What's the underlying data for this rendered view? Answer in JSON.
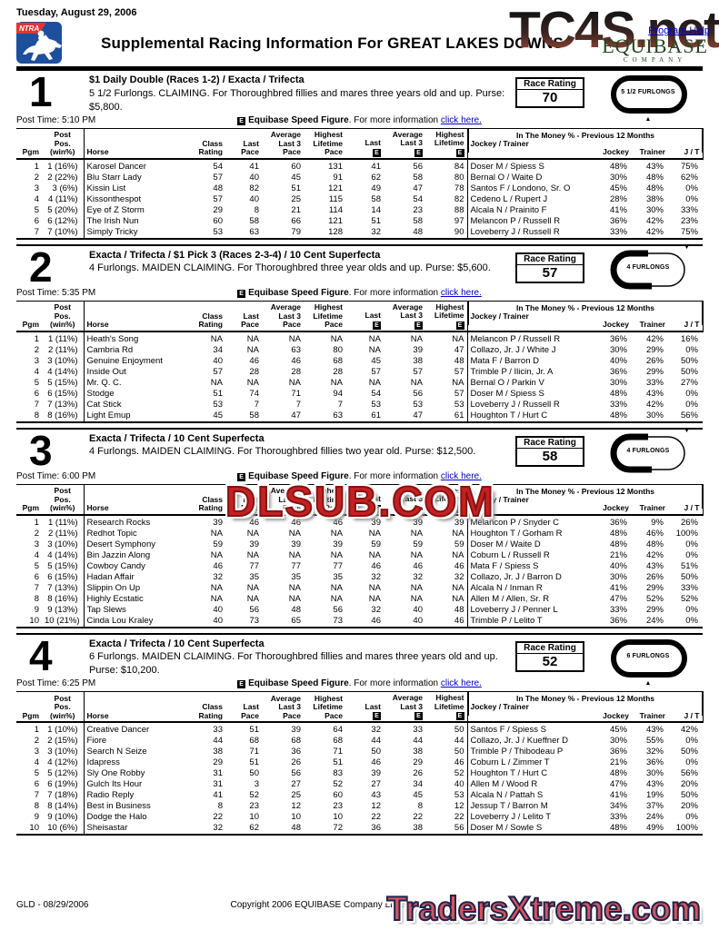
{
  "page": {
    "date": "Tuesday, August 29, 2006",
    "title": "Supplemental Racing Information For GREAT LAKES DOWNS",
    "program_help": "Program Help",
    "ntra_label": "NTRA",
    "equibase_name": "EQUIBASE",
    "equibase_sub": "COMPANY",
    "watermark_top": "TC4S.net",
    "watermark_bottom": "TradersXtreme.com",
    "footer_left": "GLD - 08/29/2006",
    "footer_center": "Copyright 2006 EQUIBASE Company LLC. All Rights Reserved.",
    "colors": {
      "link": "#0000cc",
      "ntra_blue": "#1d4f9e",
      "ntra_red": "#e3342f",
      "equibase_green": "#23481f",
      "watermark_red": "#c32222"
    }
  },
  "race_rating_label": "Race Rating",
  "speed_note": {
    "e_badge": "E",
    "bold": "Equibase Speed Figure",
    "rest": ". For more information ",
    "link": "click here."
  },
  "table_header": {
    "pgm": "Pgm",
    "pos": "Post\nPos. (win%)",
    "horse": "Horse",
    "class_rating": "Class\nRating",
    "last_pace": "Last\nPace",
    "avg3_pace": "Average\nLast 3\nPace",
    "high_pace": "Highest\nLifetime\nPace",
    "last_e": "Last",
    "avg3_e": "Average\nLast 3",
    "high_e": "Highest\nLifetime",
    "e_badge": "E",
    "jockey_trainer": "Jockey / Trainer",
    "in_the_money": "In The Money % - Previous 12 Months",
    "jockey": "Jockey",
    "trainer": "Trainer",
    "jt": "J / T"
  },
  "races": [
    {
      "num": "1",
      "wagers": "$1 Daily Double (Races 1-2) / Exacta / Trifecta",
      "conditions": "5 1/2 Furlongs. CLAIMING. For Thoroughbred fillies and mares three years old and up. Purse: $5,800.",
      "post_time": "Post Time: 5:10 PM",
      "rating": "70",
      "distance_label": "5 1/2 FURLONGS",
      "track_style": "full",
      "watermark": "",
      "rows": [
        [
          "1",
          "1 (16%)",
          "Karosel Dancer",
          "54",
          "41",
          "60",
          "131",
          "41",
          "56",
          "84",
          "Doser M / Spiess S",
          "48%",
          "43%",
          "75%"
        ],
        [
          "2",
          "2 (22%)",
          "Blu Starr Lady",
          "57",
          "40",
          "45",
          "91",
          "62",
          "58",
          "80",
          "Bernal O / Waite D",
          "30%",
          "48%",
          "62%"
        ],
        [
          "3",
          "3 (6%)",
          "Kissin List",
          "48",
          "82",
          "51",
          "121",
          "49",
          "47",
          "78",
          "Santos F / Londono, Sr. O",
          "45%",
          "48%",
          "0%"
        ],
        [
          "4",
          "4 (11%)",
          "Kissonthespot",
          "57",
          "40",
          "25",
          "115",
          "58",
          "54",
          "82",
          "Cedeno L / Rupert J",
          "28%",
          "38%",
          "0%"
        ],
        [
          "5",
          "5 (20%)",
          "Eye of Z Storm",
          "29",
          "8",
          "21",
          "114",
          "14",
          "23",
          "88",
          "Alcala N / Prainito F",
          "41%",
          "30%",
          "33%"
        ],
        [
          "6",
          "6 (12%)",
          "The Irish Nun",
          "60",
          "58",
          "66",
          "121",
          "51",
          "58",
          "97",
          "Melancon P / Russell R",
          "36%",
          "42%",
          "23%"
        ],
        [
          "7",
          "7 (10%)",
          "Simply Tricky",
          "53",
          "63",
          "79",
          "128",
          "32",
          "48",
          "90",
          "Loveberry J / Russell R",
          "33%",
          "42%",
          "75%"
        ]
      ]
    },
    {
      "num": "2",
      "wagers": "Exacta / Trifecta / $1 Pick 3 (Races 2-3-4) / 10 Cent Superfecta",
      "conditions": "4 Furlongs. MAIDEN CLAIMING. For Thoroughbred three year olds and up. Purse: $5,600.",
      "post_time": "Post Time: 5:35 PM",
      "rating": "57",
      "distance_label": "4 FURLONGS",
      "track_style": "left",
      "watermark": "",
      "rows": [
        [
          "1",
          "1 (11%)",
          "Heath's Song",
          "NA",
          "NA",
          "NA",
          "NA",
          "NA",
          "NA",
          "NA",
          "Melancon P / Russell R",
          "36%",
          "42%",
          "16%"
        ],
        [
          "2",
          "2 (11%)",
          "Cambria Rd",
          "34",
          "NA",
          "63",
          "80",
          "NA",
          "39",
          "47",
          "Collazo, Jr. J / White J",
          "30%",
          "29%",
          "0%"
        ],
        [
          "3",
          "3 (10%)",
          "Genuine Enjoyment",
          "40",
          "46",
          "46",
          "68",
          "45",
          "38",
          "48",
          "Mata F / Barron D",
          "40%",
          "26%",
          "50%"
        ],
        [
          "4",
          "4 (14%)",
          "Inside Out",
          "57",
          "28",
          "28",
          "28",
          "57",
          "57",
          "57",
          "Trimble P / Ilicin, Jr. A",
          "36%",
          "29%",
          "50%"
        ],
        [
          "5",
          "5 (15%)",
          "Mr. Q. C.",
          "NA",
          "NA",
          "NA",
          "NA",
          "NA",
          "NA",
          "NA",
          "Bernal O / Parkin V",
          "30%",
          "33%",
          "27%"
        ],
        [
          "6",
          "6 (15%)",
          "Stodge",
          "51",
          "74",
          "71",
          "94",
          "54",
          "56",
          "57",
          "Doser M / Spiess S",
          "48%",
          "43%",
          "0%"
        ],
        [
          "7",
          "7 (13%)",
          "Cat Stick",
          "53",
          "7",
          "7",
          "7",
          "53",
          "53",
          "53",
          "Loveberry J / Russell R",
          "33%",
          "42%",
          "0%"
        ],
        [
          "8",
          "8 (16%)",
          "Light Emup",
          "45",
          "58",
          "47",
          "63",
          "61",
          "47",
          "61",
          "Houghton T / Hurt C",
          "48%",
          "30%",
          "56%"
        ]
      ]
    },
    {
      "num": "3",
      "wagers": "Exacta / Trifecta / 10 Cent Superfecta",
      "conditions": "4 Furlongs. MAIDEN CLAIMING. For Thoroughbred fillies two year old. Purse: $12,500.",
      "post_time": "Post Time: 6:00 PM",
      "rating": "58",
      "distance_label": "4 FURLONGS",
      "track_style": "left",
      "watermark": "DLSUB.COM",
      "rows": [
        [
          "1",
          "1 (11%)",
          "Research Rocks",
          "39",
          "46",
          "46",
          "46",
          "39",
          "39",
          "39",
          "Melancon P / Snyder C",
          "36%",
          "9%",
          "26%"
        ],
        [
          "2",
          "2 (11%)",
          "Redhot Topic",
          "NA",
          "NA",
          "NA",
          "NA",
          "NA",
          "NA",
          "NA",
          "Houghton T / Gorham R",
          "48%",
          "46%",
          "100%"
        ],
        [
          "3",
          "3 (10%)",
          "Desert Symphony",
          "59",
          "39",
          "39",
          "39",
          "59",
          "59",
          "59",
          "Doser M / Waite D",
          "48%",
          "48%",
          "0%"
        ],
        [
          "4",
          "4 (14%)",
          "Bin Jazzin Along",
          "NA",
          "NA",
          "NA",
          "NA",
          "NA",
          "NA",
          "NA",
          "Coburn L / Russell R",
          "21%",
          "42%",
          "0%"
        ],
        [
          "5",
          "5 (15%)",
          "Cowboy Candy",
          "46",
          "77",
          "77",
          "77",
          "46",
          "46",
          "46",
          "Mata F / Spiess S",
          "40%",
          "43%",
          "51%"
        ],
        [
          "6",
          "6 (15%)",
          "Hadan Affair",
          "32",
          "35",
          "35",
          "35",
          "32",
          "32",
          "32",
          "Collazo, Jr. J / Barron D",
          "30%",
          "26%",
          "50%"
        ],
        [
          "7",
          "7 (13%)",
          "Slippin On Up",
          "NA",
          "NA",
          "NA",
          "NA",
          "NA",
          "NA",
          "NA",
          "Alcala N / Inman R",
          "41%",
          "29%",
          "33%"
        ],
        [
          "8",
          "8 (16%)",
          "Highly Ecstatic",
          "NA",
          "NA",
          "NA",
          "NA",
          "NA",
          "NA",
          "NA",
          "Allen M / Allen, Sr. R",
          "47%",
          "52%",
          "52%"
        ],
        [
          "9",
          "9 (13%)",
          "Tap Slews",
          "40",
          "56",
          "48",
          "56",
          "32",
          "40",
          "48",
          "Loveberry J / Penner L",
          "33%",
          "29%",
          "0%"
        ],
        [
          "10",
          "10 (21%)",
          "Cinda Lou Kraley",
          "40",
          "73",
          "65",
          "73",
          "46",
          "40",
          "46",
          "Trimble P / Lelito T",
          "36%",
          "24%",
          "0%"
        ]
      ]
    },
    {
      "num": "4",
      "wagers": "Exacta / Trifecta / 10 Cent Superfecta",
      "conditions": "6 Furlongs. MAIDEN CLAIMING. For Thoroughbred fillies and mares three years old and up. Purse: $10,200.",
      "post_time": "Post Time: 6:25 PM",
      "rating": "52",
      "distance_label": "6 FURLONGS",
      "track_style": "full",
      "watermark": "",
      "rows": [
        [
          "1",
          "1 (10%)",
          "Creative Dancer",
          "33",
          "51",
          "39",
          "64",
          "32",
          "33",
          "50",
          "Santos F / Spiess S",
          "45%",
          "43%",
          "42%"
        ],
        [
          "2",
          "2 (15%)",
          "Fiore",
          "44",
          "68",
          "68",
          "68",
          "44",
          "44",
          "44",
          "Collazo, Jr. J / Kueffner D",
          "30%",
          "55%",
          "0%"
        ],
        [
          "3",
          "3 (10%)",
          "Search N Seize",
          "38",
          "71",
          "36",
          "71",
          "50",
          "38",
          "50",
          "Trimble P / Thibodeau P",
          "36%",
          "32%",
          "50%"
        ],
        [
          "4",
          "4 (12%)",
          "Idapress",
          "29",
          "51",
          "26",
          "51",
          "46",
          "29",
          "46",
          "Coburn L / Zimmer T",
          "21%",
          "36%",
          "0%"
        ],
        [
          "5",
          "5 (12%)",
          "Sly One Robby",
          "31",
          "50",
          "56",
          "83",
          "39",
          "26",
          "52",
          "Houghton T / Hurt C",
          "48%",
          "30%",
          "56%"
        ],
        [
          "6",
          "6 (19%)",
          "Gulch Its Hour",
          "31",
          "3",
          "27",
          "52",
          "27",
          "34",
          "40",
          "Allen M / Wood R",
          "47%",
          "43%",
          "20%"
        ],
        [
          "7",
          "7 (18%)",
          "Radio Reply",
          "41",
          "52",
          "25",
          "60",
          "43",
          "45",
          "53",
          "Alcala N / Pattah S",
          "41%",
          "19%",
          "50%"
        ],
        [
          "8",
          "8 (14%)",
          "Best in Business",
          "8",
          "23",
          "12",
          "23",
          "12",
          "8",
          "12",
          "Jessup T / Barron M",
          "34%",
          "37%",
          "20%"
        ],
        [
          "9",
          "9 (10%)",
          "Dodge the Halo",
          "22",
          "10",
          "10",
          "10",
          "22",
          "22",
          "22",
          "Loveberry J / Lelito T",
          "33%",
          "24%",
          "0%"
        ],
        [
          "10",
          "10 (6%)",
          "Sheisastar",
          "32",
          "62",
          "48",
          "72",
          "36",
          "38",
          "56",
          "Doser M / Sowle S",
          "48%",
          "49%",
          "100%"
        ]
      ]
    }
  ]
}
